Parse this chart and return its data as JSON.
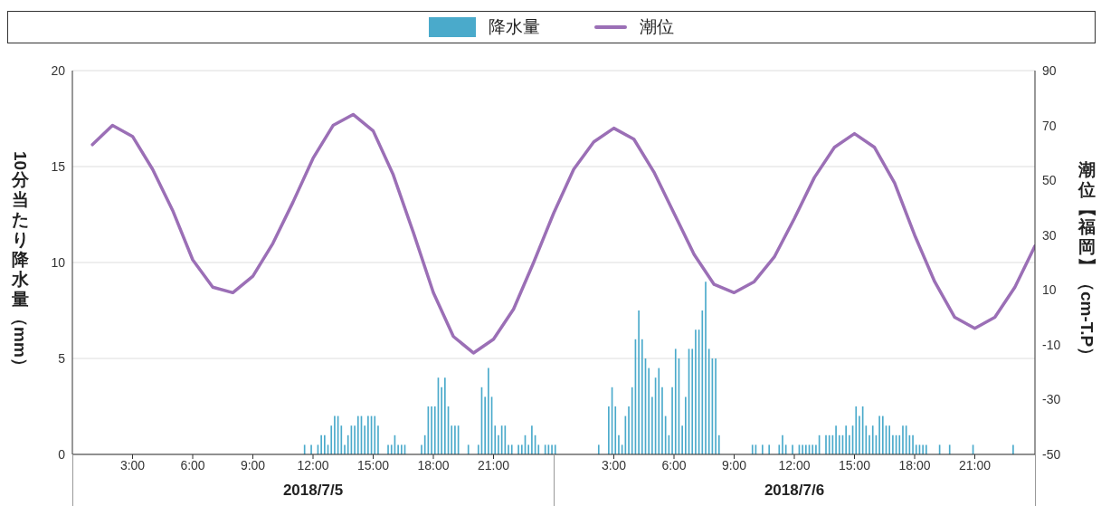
{
  "chart_data": {
    "type": "bar",
    "xlim": [
      "2018-07-05T00:00",
      "2018-07-07T00:00"
    ],
    "xticks": [
      {
        "value": "2018-07-05T03:00",
        "label": "3:00"
      },
      {
        "value": "2018-07-05T06:00",
        "label": "6:00"
      },
      {
        "value": "2018-07-05T09:00",
        "label": "9:00"
      },
      {
        "value": "2018-07-05T12:00",
        "label": "12:00"
      },
      {
        "value": "2018-07-05T15:00",
        "label": "15:00"
      },
      {
        "value": "2018-07-05T18:00",
        "label": "18:00"
      },
      {
        "value": "2018-07-05T21:00",
        "label": "21:00"
      },
      {
        "value": "2018-07-06T03:00",
        "label": "3:00"
      },
      {
        "value": "2018-07-06T06:00",
        "label": "6:00"
      },
      {
        "value": "2018-07-06T09:00",
        "label": "9:00"
      },
      {
        "value": "2018-07-06T12:00",
        "label": "12:00"
      },
      {
        "value": "2018-07-06T15:00",
        "label": "15:00"
      },
      {
        "value": "2018-07-06T18:00",
        "label": "18:00"
      },
      {
        "value": "2018-07-06T21:00",
        "label": "21:00"
      }
    ],
    "ylim": [
      0,
      20
    ],
    "yticks": [
      0,
      5,
      10,
      15,
      20
    ],
    "y2lim": [
      -50,
      90
    ],
    "y2ticks": [
      -50,
      -30,
      -10,
      10,
      30,
      50,
      70,
      90
    ],
    "ylabel": "10分当たり降水量（mm）",
    "y2label": "潮位【福岡】（cm-T.P）",
    "annotations": [
      "2018/7/5",
      "2018/7/6"
    ],
    "grid": "y",
    "legend": "top",
    "series": [
      {
        "name": "降水量",
        "color": "#4aaacb",
        "x": [
          "2018-07-05T11:35",
          "2018-07-05T11:55",
          "2018-07-05T12:15",
          "2018-07-05T12:25",
          "2018-07-05T12:35",
          "2018-07-05T12:45",
          "2018-07-05T12:55",
          "2018-07-05T13:05",
          "2018-07-05T13:15",
          "2018-07-05T13:25",
          "2018-07-05T13:35",
          "2018-07-05T13:45",
          "2018-07-05T13:55",
          "2018-07-05T14:05",
          "2018-07-05T14:15",
          "2018-07-05T14:25",
          "2018-07-05T14:35",
          "2018-07-05T14:45",
          "2018-07-05T14:55",
          "2018-07-05T15:05",
          "2018-07-05T15:15",
          "2018-07-05T15:45",
          "2018-07-05T15:55",
          "2018-07-05T16:05",
          "2018-07-05T16:15",
          "2018-07-05T16:25",
          "2018-07-05T16:35",
          "2018-07-05T17:25",
          "2018-07-05T17:35",
          "2018-07-05T17:45",
          "2018-07-05T17:55",
          "2018-07-05T18:05",
          "2018-07-05T18:15",
          "2018-07-05T18:25",
          "2018-07-05T18:35",
          "2018-07-05T18:45",
          "2018-07-05T18:55",
          "2018-07-05T19:05",
          "2018-07-05T19:15",
          "2018-07-05T19:45",
          "2018-07-05T20:15",
          "2018-07-05T20:25",
          "2018-07-05T20:35",
          "2018-07-05T20:45",
          "2018-07-05T20:55",
          "2018-07-05T21:05",
          "2018-07-05T21:15",
          "2018-07-05T21:25",
          "2018-07-05T21:35",
          "2018-07-05T21:45",
          "2018-07-05T21:55",
          "2018-07-05T22:15",
          "2018-07-05T22:25",
          "2018-07-05T22:35",
          "2018-07-05T22:45",
          "2018-07-05T22:55",
          "2018-07-05T23:05",
          "2018-07-05T23:15",
          "2018-07-05T23:35",
          "2018-07-05T23:45",
          "2018-07-05T23:55",
          "2018-07-06T00:05",
          "2018-07-06T02:15",
          "2018-07-06T02:45",
          "2018-07-06T02:55",
          "2018-07-06T03:05",
          "2018-07-06T03:15",
          "2018-07-06T03:25",
          "2018-07-06T03:35",
          "2018-07-06T03:45",
          "2018-07-06T03:55",
          "2018-07-06T04:05",
          "2018-07-06T04:15",
          "2018-07-06T04:25",
          "2018-07-06T04:35",
          "2018-07-06T04:45",
          "2018-07-06T04:55",
          "2018-07-06T05:05",
          "2018-07-06T05:15",
          "2018-07-06T05:25",
          "2018-07-06T05:35",
          "2018-07-06T05:45",
          "2018-07-06T05:55",
          "2018-07-06T06:05",
          "2018-07-06T06:15",
          "2018-07-06T06:25",
          "2018-07-06T06:35",
          "2018-07-06T06:45",
          "2018-07-06T06:55",
          "2018-07-06T07:05",
          "2018-07-06T07:15",
          "2018-07-06T07:25",
          "2018-07-06T07:35",
          "2018-07-06T07:45",
          "2018-07-06T07:55",
          "2018-07-06T08:05",
          "2018-07-06T08:15",
          "2018-07-06T09:55",
          "2018-07-06T10:05",
          "2018-07-06T10:25",
          "2018-07-06T10:45",
          "2018-07-06T11:15",
          "2018-07-06T11:25",
          "2018-07-06T11:35",
          "2018-07-06T11:55",
          "2018-07-06T12:15",
          "2018-07-06T12:25",
          "2018-07-06T12:35",
          "2018-07-06T12:45",
          "2018-07-06T12:55",
          "2018-07-06T13:05",
          "2018-07-06T13:15",
          "2018-07-06T13:35",
          "2018-07-06T13:45",
          "2018-07-06T13:55",
          "2018-07-06T14:05",
          "2018-07-06T14:15",
          "2018-07-06T14:25",
          "2018-07-06T14:35",
          "2018-07-06T14:45",
          "2018-07-06T14:55",
          "2018-07-06T15:05",
          "2018-07-06T15:15",
          "2018-07-06T15:25",
          "2018-07-06T15:35",
          "2018-07-06T15:45",
          "2018-07-06T15:55",
          "2018-07-06T16:05",
          "2018-07-06T16:15",
          "2018-07-06T16:25",
          "2018-07-06T16:35",
          "2018-07-06T16:45",
          "2018-07-06T16:55",
          "2018-07-06T17:05",
          "2018-07-06T17:15",
          "2018-07-06T17:25",
          "2018-07-06T17:35",
          "2018-07-06T17:45",
          "2018-07-06T17:55",
          "2018-07-06T18:05",
          "2018-07-06T18:15",
          "2018-07-06T18:25",
          "2018-07-06T18:35",
          "2018-07-06T19:15",
          "2018-07-06T19:45",
          "2018-07-06T20:55",
          "2018-07-06T22:55"
        ],
        "values": [
          0.5,
          0.5,
          0.5,
          1,
          1,
          0.5,
          1.5,
          2,
          2,
          1.5,
          0.5,
          1,
          1.5,
          1.5,
          2,
          2,
          1.5,
          2,
          2,
          2,
          1.5,
          0.5,
          0.5,
          1,
          0.5,
          0.5,
          0.5,
          0.5,
          1,
          2.5,
          2.5,
          2.5,
          4,
          3.5,
          4,
          2.5,
          1.5,
          1.5,
          1.5,
          0.5,
          0.5,
          3.5,
          3,
          4.5,
          3,
          1.5,
          1,
          1.5,
          1.5,
          0.5,
          0.5,
          0.5,
          0.5,
          1,
          0.5,
          1.5,
          1,
          0.5,
          0.5,
          0.5,
          0.5,
          0.5,
          0.5,
          2.5,
          3.5,
          2.5,
          1,
          0.5,
          2,
          2.5,
          3.5,
          6,
          7.5,
          6,
          5,
          4.5,
          3,
          4,
          4.5,
          3.5,
          2,
          1,
          3.5,
          5.5,
          5,
          1.5,
          3,
          5.5,
          5.5,
          6.5,
          6.5,
          7.5,
          9,
          5.5,
          5,
          5,
          1,
          0.5,
          0.5,
          0.5,
          0.5,
          0.5,
          1,
          0.5,
          0.5,
          0.5,
          0.5,
          0.5,
          0.5,
          0.5,
          0.5,
          1,
          1,
          1,
          1,
          1.5,
          1,
          1,
          1.5,
          1,
          1.5,
          2.5,
          2,
          2.5,
          1.5,
          1,
          1.5,
          1,
          2,
          2,
          1.5,
          1.5,
          1,
          1,
          1,
          1.5,
          1.5,
          1,
          1,
          0.5,
          0.5,
          0.5,
          0.5,
          0.5,
          0.5,
          0.5,
          0.5
        ]
      },
      {
        "name": "潮位",
        "type": "line",
        "axis": "y2",
        "color": "#9b6fb6",
        "x": [
          "2018-07-05T01:00",
          "2018-07-05T02:00",
          "2018-07-05T03:00",
          "2018-07-05T04:00",
          "2018-07-05T05:00",
          "2018-07-05T06:00",
          "2018-07-05T07:00",
          "2018-07-05T08:00",
          "2018-07-05T09:00",
          "2018-07-05T10:00",
          "2018-07-05T11:00",
          "2018-07-05T12:00",
          "2018-07-05T13:00",
          "2018-07-05T14:00",
          "2018-07-05T15:00",
          "2018-07-05T16:00",
          "2018-07-05T17:00",
          "2018-07-05T18:00",
          "2018-07-05T19:00",
          "2018-07-05T20:00",
          "2018-07-05T21:00",
          "2018-07-05T22:00",
          "2018-07-05T23:00",
          "2018-07-06T00:00",
          "2018-07-06T01:00",
          "2018-07-06T02:00",
          "2018-07-06T03:00",
          "2018-07-06T04:00",
          "2018-07-06T05:00",
          "2018-07-06T06:00",
          "2018-07-06T07:00",
          "2018-07-06T08:00",
          "2018-07-06T09:00",
          "2018-07-06T10:00",
          "2018-07-06T11:00",
          "2018-07-06T12:00",
          "2018-07-06T13:00",
          "2018-07-06T14:00",
          "2018-07-06T15:00",
          "2018-07-06T16:00",
          "2018-07-06T17:00",
          "2018-07-06T18:00",
          "2018-07-06T19:00",
          "2018-07-06T20:00",
          "2018-07-06T21:00",
          "2018-07-06T22:00",
          "2018-07-06T23:00",
          "2018-07-07T00:00"
        ],
        "values": [
          63,
          70,
          66,
          54,
          39,
          21,
          11,
          9,
          15,
          27,
          42,
          58,
          70,
          74,
          68,
          52,
          31,
          9,
          -7,
          -13,
          -8,
          3,
          20,
          38,
          54,
          64,
          69,
          65,
          53,
          38,
          23,
          12,
          9,
          13,
          22,
          36,
          51,
          62,
          67,
          62,
          49,
          30,
          13,
          0,
          -4,
          0,
          11,
          26
        ]
      }
    ]
  }
}
